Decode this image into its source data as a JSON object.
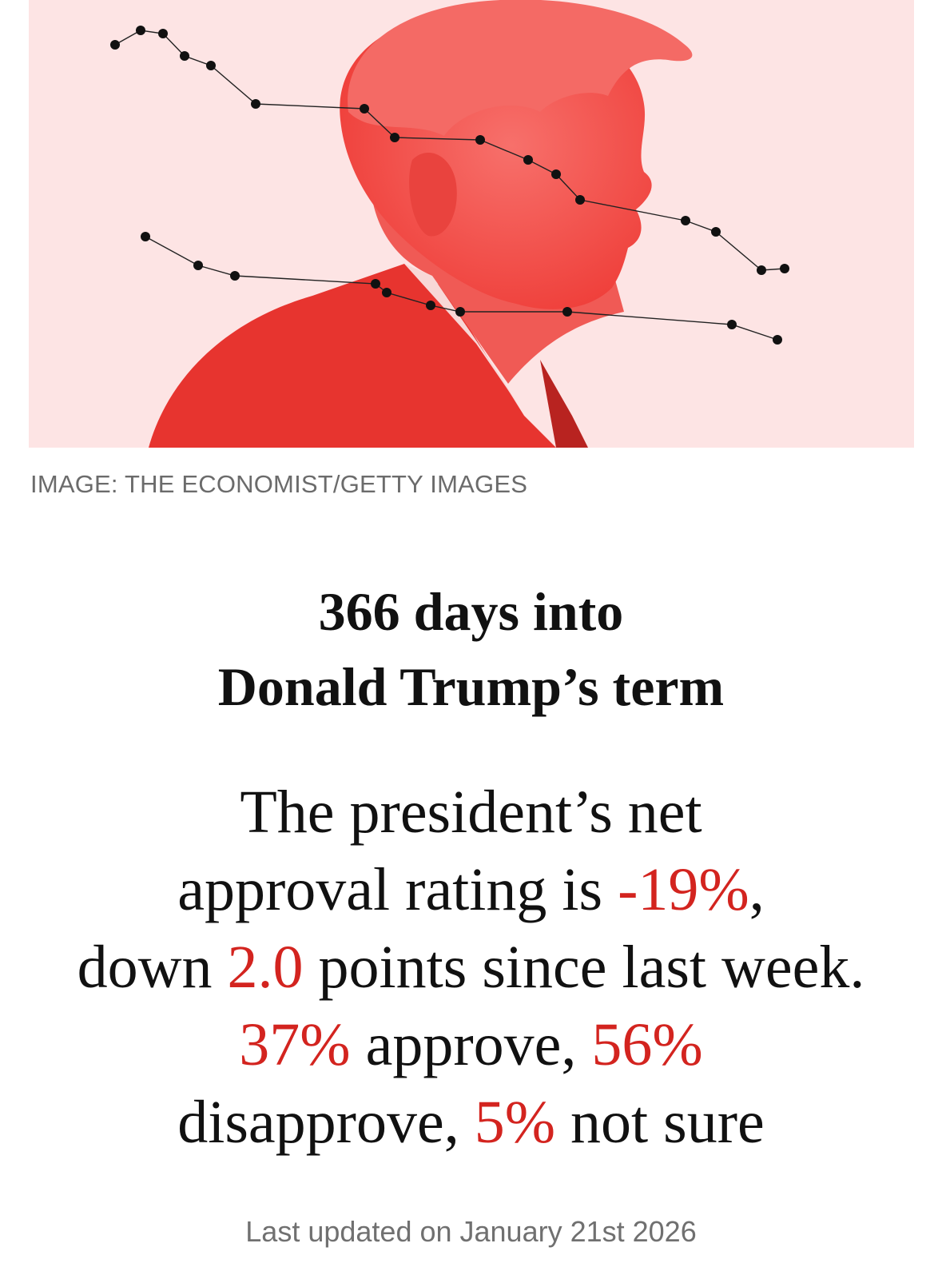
{
  "hero_image": {
    "background_color": "#fde4e4",
    "figure_color": "#f24a45",
    "figure_dark_color": "#de2e2b",
    "marker_color": "#111111",
    "description_icon": "portrait-silhouette-icon"
  },
  "image_credit": "IMAGE: THE ECONOMIST/GETTY IMAGES",
  "headline": {
    "line1": "366 days into",
    "line2": "Donald Trump’s term"
  },
  "summary": {
    "part1": "The president’s net",
    "part2": "approval rating is ",
    "net_approval": "-19%",
    "part3": ",",
    "part4": "down ",
    "change": "2.0",
    "part5": " points since last week.",
    "approve": "37%",
    "part6": " approve, ",
    "disapprove": "56%",
    "part7": "disapprove, ",
    "not_sure": "5%",
    "part8": " not sure",
    "highlight_color": "#d3241f"
  },
  "last_updated": "Last updated on January 21st 2026"
}
